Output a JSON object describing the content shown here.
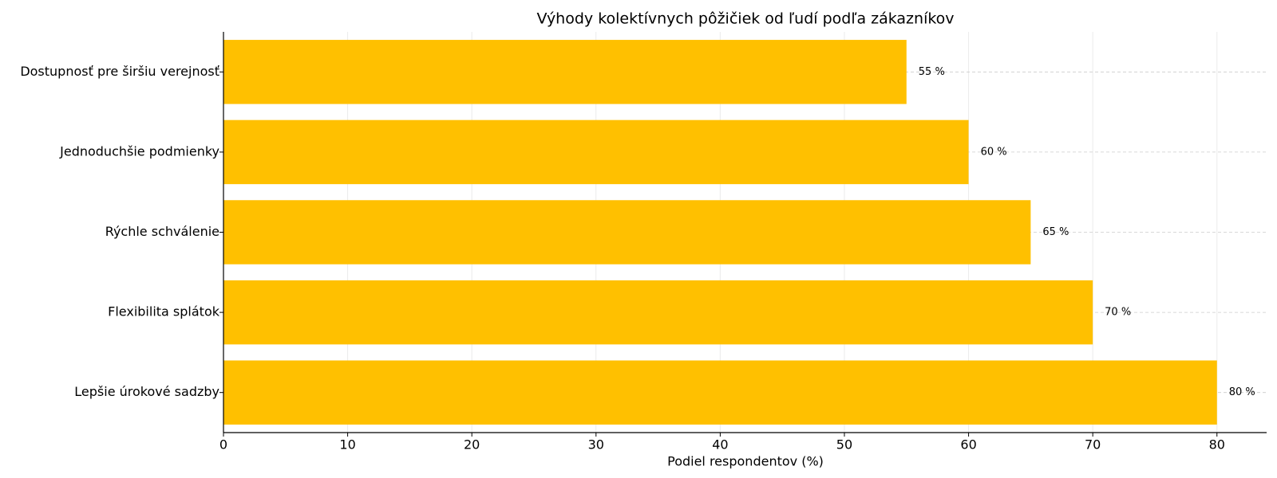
{
  "chart_data": {
    "type": "barh",
    "title": "Výhody kolektívnych pôžičiek od ľudí podľa zákazníkov",
    "x_label": "Podiel respondentov (%)",
    "categories": [
      "Dostupnosť pre širšiu verejnosť",
      "Jednoduchšie podmienky",
      "Rýchle schválenie",
      "Flexibilita splátok",
      "Lepšie úrokové sadzby"
    ],
    "values": [
      55,
      60,
      65,
      70,
      80
    ],
    "value_labels": [
      "55 %",
      "60 %",
      "65 %",
      "70 %",
      "80 %"
    ],
    "color": "#ffc000",
    "xlim": [
      0,
      84
    ],
    "xticks": [
      0,
      10,
      20,
      30,
      40,
      50,
      60,
      70,
      80
    ],
    "grid": true
  }
}
